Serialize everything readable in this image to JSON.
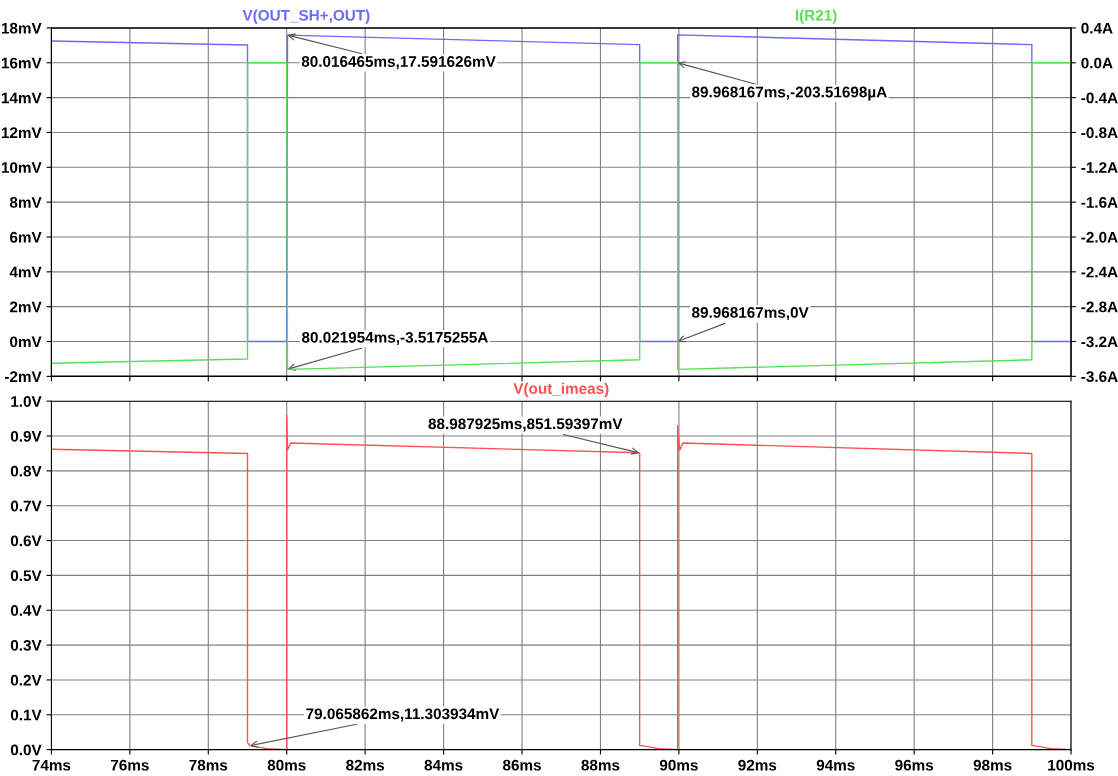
{
  "chart_data": [
    {
      "type": "line",
      "xlim": [
        74,
        100
      ],
      "xticks": [
        74,
        76,
        78,
        80,
        82,
        84,
        86,
        88,
        90,
        92,
        94,
        96,
        98,
        100
      ],
      "tick_labels": "y",
      "grid": true,
      "legend": false,
      "ylim": [
        -2,
        18
      ],
      "yticks": [
        {
          "value": -2,
          "label": "-2mV"
        },
        {
          "value": 0,
          "label": "0mV"
        },
        {
          "value": 2,
          "label": "2mV"
        },
        {
          "value": 4,
          "label": "4mV"
        },
        {
          "value": 6,
          "label": "6mV"
        },
        {
          "value": 8,
          "label": "8mV"
        },
        {
          "value": 10,
          "label": "10mV"
        },
        {
          "value": 12,
          "label": "12mV"
        },
        {
          "value": 14,
          "label": "14mV"
        },
        {
          "value": 16,
          "label": "16mV"
        },
        {
          "value": 18,
          "label": "18mV"
        }
      ],
      "y2lim": [
        -3.6,
        0.4
      ],
      "y2ticks": [
        {
          "value": -3.6,
          "label": "-3.6A"
        },
        {
          "value": -3.2,
          "label": "-3.2A"
        },
        {
          "value": -2.8,
          "label": "-2.8A"
        },
        {
          "value": -2.4,
          "label": "-2.4A"
        },
        {
          "value": -2.0,
          "label": "-2.0A"
        },
        {
          "value": -1.6,
          "label": "-1.6A"
        },
        {
          "value": -1.2,
          "label": "-1.2A"
        },
        {
          "value": -0.8,
          "label": "-0.8A"
        },
        {
          "value": -0.4,
          "label": "-0.4A"
        },
        {
          "value": 0.0,
          "label": "0.0A"
        },
        {
          "value": 0.4,
          "label": "0.4A"
        }
      ],
      "series": [
        {
          "name": "V(OUT_SH+,OUT)",
          "color": "#6a6aff",
          "x": [
            74,
            79.0,
            79.0,
            80.0,
            80.02,
            89.0,
            89.0,
            89.97,
            89.97,
            99.0,
            99.0,
            100
          ],
          "values": [
            17.25,
            17.02,
            0,
            0,
            17.59,
            17.04,
            0,
            0,
            17.6,
            17.04,
            0,
            0
          ]
        },
        {
          "name": "I(R21)",
          "color": "#55e055",
          "axis": "y2",
          "x": [
            74,
            79.0,
            79.0,
            80.0,
            80.02,
            89.0,
            89.0,
            89.97,
            89.97,
            99.0,
            99.0,
            100
          ],
          "values": [
            -3.45,
            -3.4,
            0,
            0,
            -3.52,
            -3.41,
            0,
            0,
            -3.52,
            -3.41,
            0,
            0
          ]
        }
      ],
      "annotations": [
        {
          "text": "80.016465ms,17.591626mV",
          "x": 80.016465,
          "y": 17.591626
        },
        {
          "text": "80.021954ms,-3.5175255A",
          "x": 80.021954,
          "y": -1.59
        },
        {
          "text": "89.968167ms,-203.51698µA",
          "x": 89.968167,
          "y": 16.0
        },
        {
          "text": "89.968167ms,0V",
          "x": 89.968167,
          "y": 0
        }
      ]
    },
    {
      "type": "line",
      "xlim": [
        74,
        100
      ],
      "xticks": [
        {
          "value": 74,
          "label": "74ms"
        },
        {
          "value": 76,
          "label": "76ms"
        },
        {
          "value": 78,
          "label": "78ms"
        },
        {
          "value": 80,
          "label": "80ms"
        },
        {
          "value": 82,
          "label": "82ms"
        },
        {
          "value": 84,
          "label": "84ms"
        },
        {
          "value": 86,
          "label": "86ms"
        },
        {
          "value": 88,
          "label": "88ms"
        },
        {
          "value": 90,
          "label": "90ms"
        },
        {
          "value": 92,
          "label": "92ms"
        },
        {
          "value": 94,
          "label": "94ms"
        },
        {
          "value": 96,
          "label": "96ms"
        },
        {
          "value": 98,
          "label": "98ms"
        },
        {
          "value": 100,
          "label": "100ms"
        }
      ],
      "grid": true,
      "legend": false,
      "ylim": [
        0,
        1.0
      ],
      "yticks": [
        {
          "value": 0,
          "label": "0.0V"
        },
        {
          "value": 0.1,
          "label": "0.1V"
        },
        {
          "value": 0.2,
          "label": "0.2V"
        },
        {
          "value": 0.3,
          "label": "0.3V"
        },
        {
          "value": 0.4,
          "label": "0.4V"
        },
        {
          "value": 0.5,
          "label": "0.5V"
        },
        {
          "value": 0.6,
          "label": "0.6V"
        },
        {
          "value": 0.7,
          "label": "0.7V"
        },
        {
          "value": 0.8,
          "label": "0.8V"
        },
        {
          "value": 0.9,
          "label": "0.9V"
        },
        {
          "value": 1.0,
          "label": "1.0V"
        }
      ],
      "series": [
        {
          "name": "V(out_imeas)",
          "color": "#ff5050",
          "x": [
            74,
            79.0,
            79.0,
            79.07,
            79.5,
            80.0,
            80.0,
            80.02,
            80.1,
            88.99,
            89.0,
            89.0,
            89.5,
            89.97,
            89.97,
            90.02,
            90.1,
            99.0,
            99.0,
            99.5,
            100
          ],
          "values": [
            0.862,
            0.85,
            0.02,
            0.011,
            0.003,
            0.0,
            0.96,
            0.86,
            0.88,
            0.852,
            0.85,
            0.012,
            0.003,
            0.0,
            0.93,
            0.86,
            0.88,
            0.85,
            0.012,
            0.003,
            0.0
          ]
        }
      ],
      "annotations": [
        {
          "text": "79.065862ms,11.303934mV",
          "x": 79.065862,
          "y": 0.011303934
        },
        {
          "text": "88.987925ms,851.59397mV",
          "x": 88.987925,
          "y": 0.85159397
        }
      ]
    }
  ]
}
